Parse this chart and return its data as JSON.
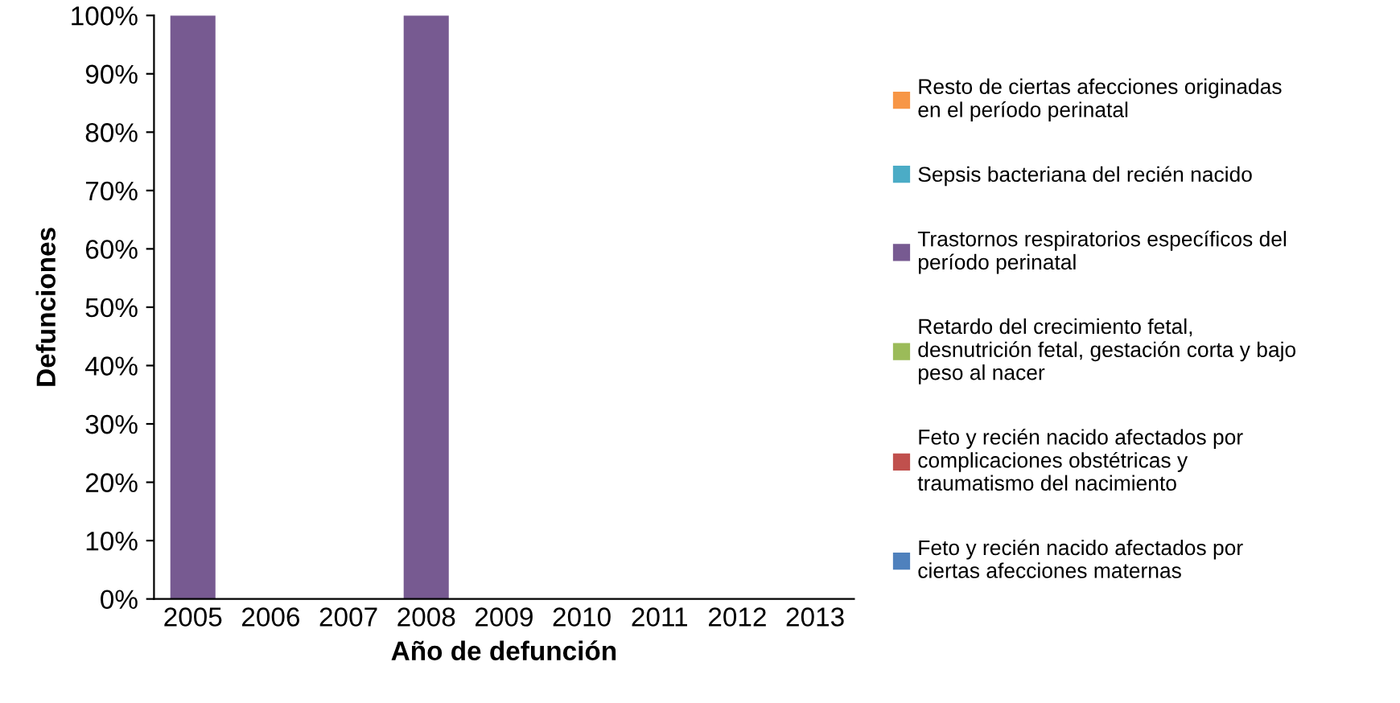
{
  "chart_data": {
    "type": "bar",
    "stacked": true,
    "xlabel": "Año de defunción",
    "ylabel": "Defunciones",
    "categories": [
      "2005",
      "2006",
      "2007",
      "2008",
      "2009",
      "2010",
      "2011",
      "2012",
      "2013"
    ],
    "series": [
      {
        "name": "Feto y recién nacido afectados por\nciertas afecciones maternas",
        "color": "#4f81bd",
        "values": [
          0,
          0,
          0,
          0,
          0,
          0,
          0,
          0,
          0
        ]
      },
      {
        "name": "Feto y recién nacido afectados por\ncomplicaciones obstétricas y\ntraumatismo del nacimiento",
        "color": "#c0504d",
        "values": [
          0,
          0,
          0,
          0,
          0,
          0,
          0,
          0,
          0
        ]
      },
      {
        "name": "Retardo del crecimiento fetal,\ndesnutrición fetal, gestación corta y bajo\npeso al nacer",
        "color": "#9bbb59",
        "values": [
          0,
          0,
          0,
          0,
          0,
          0,
          0,
          0,
          0
        ]
      },
      {
        "name": "Trastornos respiratorios específicos del\nperíodo perinatal",
        "color": "#775a91",
        "values": [
          100,
          0,
          0,
          100,
          0,
          0,
          0,
          0,
          0
        ]
      },
      {
        "name": "Sepsis bacteriana del recién nacido",
        "color": "#4bacc6",
        "values": [
          0,
          0,
          0,
          0,
          0,
          0,
          0,
          0,
          0
        ]
      },
      {
        "name": "Resto de ciertas afecciones originadas\nen el período perinatal",
        "color": "#f79646",
        "values": [
          0,
          0,
          0,
          0,
          0,
          0,
          0,
          0,
          0
        ]
      }
    ],
    "ylim": [
      0,
      100
    ],
    "yticks": [
      {
        "value": 0,
        "label": "0%"
      },
      {
        "value": 10,
        "label": "10%"
      },
      {
        "value": 20,
        "label": "20%"
      },
      {
        "value": 30,
        "label": "30%"
      },
      {
        "value": 40,
        "label": "40%"
      },
      {
        "value": 50,
        "label": "50%"
      },
      {
        "value": 60,
        "label": "60%"
      },
      {
        "value": 70,
        "label": "70%"
      },
      {
        "value": 80,
        "label": "80%"
      },
      {
        "value": 90,
        "label": "90%"
      },
      {
        "value": 100,
        "label": "100%"
      }
    ],
    "grid": false,
    "legend": "right"
  }
}
